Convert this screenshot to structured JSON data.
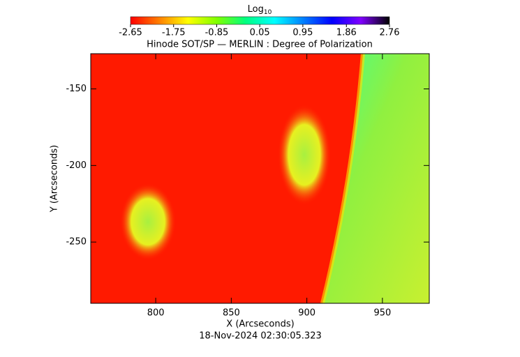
{
  "chart_data": {
    "type": "image",
    "title": "Hinode SOT/SP — MERLIN : Degree of Polarization",
    "x_label": "X (Arcseconds)",
    "y_label": "Y (Arcseconds)",
    "footer": "18-Nov-2024 02:30:05.323",
    "xlim": [
      757,
      981
    ],
    "xticks": [
      800,
      850,
      900,
      950
    ],
    "ylim": [
      -290,
      -127
    ],
    "yticks": [
      -150,
      -200,
      -250
    ],
    "colorbar": {
      "label": "Log",
      "label_sub": "10",
      "lim": [
        -2.65,
        2.76
      ],
      "ticks": [
        -2.65,
        -1.75,
        -0.85,
        0.05,
        0.95,
        1.86,
        2.76
      ],
      "colors": [
        "#ff0000",
        "#ff8000",
        "#ffff00",
        "#80ff00",
        "#00ff80",
        "#00ffff",
        "#0080ff",
        "#0000ff",
        "#8000ff",
        "#000000"
      ]
    }
  }
}
